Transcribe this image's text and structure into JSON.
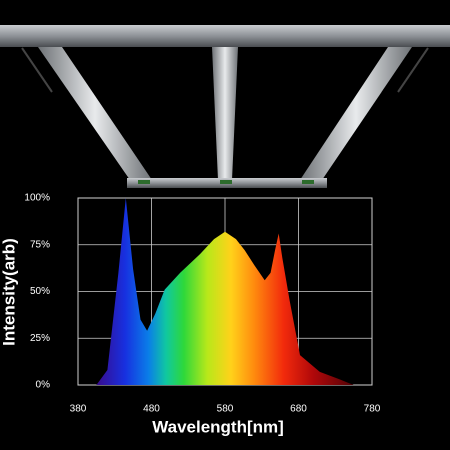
{
  "chart_data": {
    "type": "area",
    "x_label": "Wavelength[nm]",
    "y_label": "Intensity(arb)",
    "x": [
      405,
      420,
      435,
      445,
      455,
      465,
      474,
      485,
      498,
      519,
      546,
      565,
      580,
      595,
      607,
      620,
      634,
      642,
      648,
      653,
      658,
      668,
      682,
      709,
      736,
      755
    ],
    "values": [
      0,
      8,
      60,
      100,
      62,
      35,
      29,
      38,
      51,
      60,
      70,
      78,
      82,
      78,
      72,
      64,
      56,
      60,
      72,
      81,
      68,
      45,
      16,
      7,
      3,
      0
    ],
    "xlim": [
      380,
      780
    ],
    "xticks": [
      380,
      480,
      580,
      680,
      780
    ],
    "ylim": [
      0,
      100
    ],
    "yticks": [
      {
        "value": 0,
        "label": "0%"
      },
      {
        "value": 25,
        "label": "25%"
      },
      {
        "value": 50,
        "label": "50%"
      },
      {
        "value": 75,
        "label": "75%"
      },
      {
        "value": 100,
        "label": "100%"
      }
    ],
    "grid": true
  }
}
